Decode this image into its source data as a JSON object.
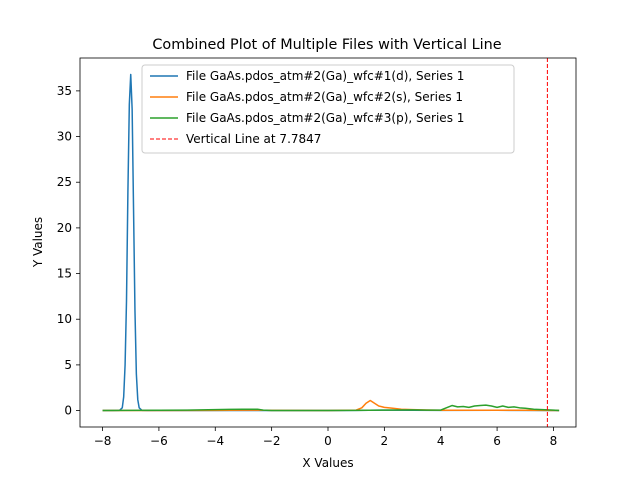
{
  "chart_data": {
    "type": "line",
    "title": "Combined Plot of Multiple Files with Vertical Line",
    "xlabel": "X Values",
    "ylabel": "Y Values",
    "xlim": [
      -8.8,
      8.8
    ],
    "ylim": [
      -1.8,
      38.6
    ],
    "xticks": [
      -8,
      -6,
      -4,
      -2,
      0,
      2,
      4,
      6,
      8
    ],
    "yticks": [
      0,
      5,
      10,
      15,
      20,
      25,
      30,
      35
    ],
    "grid": false,
    "legend_position": "top-center",
    "series": [
      {
        "name": "File GaAs.pdos_atm#2(Ga)_wfc#1(d), Series 1",
        "color": "#1f77b4",
        "x": [
          -8.0,
          -7.6,
          -7.4,
          -7.3,
          -7.25,
          -7.2,
          -7.15,
          -7.1,
          -7.05,
          -7.0,
          -6.95,
          -6.9,
          -6.85,
          -6.8,
          -6.75,
          -6.7,
          -6.6,
          -6.4,
          -5.0,
          0.0,
          1.0,
          2.0,
          3.0,
          4.0,
          6.0,
          8.2
        ],
        "y": [
          0.0,
          0.0,
          0.02,
          0.3,
          1.5,
          5.0,
          12.0,
          24.0,
          33.5,
          36.8,
          33.0,
          22.0,
          11.0,
          4.0,
          1.2,
          0.3,
          0.02,
          0.0,
          0.0,
          0.0,
          0.02,
          0.05,
          0.03,
          0.02,
          0.03,
          0.0
        ]
      },
      {
        "name": "File GaAs.pdos_atm#2(Ga)_wfc#2(s), Series 1",
        "color": "#ff7f0e",
        "x": [
          -8.0,
          -6.0,
          -4.0,
          -3.0,
          -2.5,
          -2.0,
          0.0,
          1.0,
          1.2,
          1.35,
          1.5,
          1.65,
          1.8,
          2.0,
          2.3,
          2.6,
          3.0,
          3.5,
          4.0,
          5.0,
          6.0,
          7.0,
          8.2
        ],
        "y": [
          0.0,
          0.01,
          0.02,
          0.05,
          0.05,
          0.02,
          0.01,
          0.05,
          0.3,
          0.8,
          1.1,
          0.8,
          0.5,
          0.35,
          0.25,
          0.15,
          0.1,
          0.06,
          0.04,
          0.03,
          0.03,
          0.03,
          0.0
        ]
      },
      {
        "name": "File GaAs.pdos_atm#2(Ga)_wfc#3(p), Series 1",
        "color": "#2ca02c",
        "x": [
          -8.0,
          -7.0,
          -6.0,
          -5.0,
          -4.5,
          -4.0,
          -3.5,
          -3.0,
          -2.5,
          -2.3,
          -2.0,
          -1.0,
          0.0,
          1.0,
          2.0,
          3.0,
          3.5,
          4.0,
          4.2,
          4.4,
          4.6,
          4.8,
          5.0,
          5.2,
          5.4,
          5.6,
          5.8,
          6.0,
          6.2,
          6.4,
          6.6,
          6.8,
          7.0,
          7.3,
          7.6,
          8.0,
          8.2
        ],
        "y": [
          0.0,
          0.02,
          0.03,
          0.05,
          0.08,
          0.1,
          0.13,
          0.15,
          0.15,
          0.05,
          0.0,
          0.0,
          0.0,
          0.02,
          0.05,
          0.08,
          0.05,
          0.05,
          0.3,
          0.55,
          0.4,
          0.45,
          0.35,
          0.5,
          0.55,
          0.6,
          0.5,
          0.35,
          0.5,
          0.35,
          0.4,
          0.3,
          0.25,
          0.15,
          0.1,
          0.05,
          0.0
        ]
      }
    ],
    "vertical_line": {
      "x": 7.7847,
      "label": "Vertical Line at 7.7847",
      "color": "#ff0000",
      "style": "dashed"
    }
  }
}
